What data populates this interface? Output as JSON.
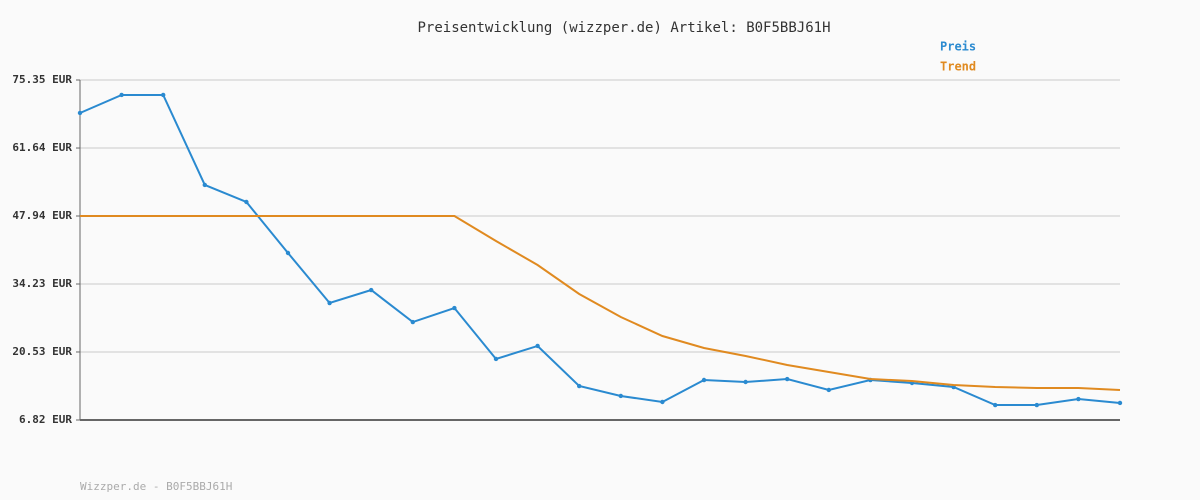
{
  "chart_data": {
    "type": "line",
    "title": "Preisentwicklung (wizzper.de) Artikel: B0F5BBJ61H",
    "categories": [
      null,
      null,
      null,
      null,
      null,
      null,
      null,
      null,
      null,
      null,
      null,
      null,
      null,
      null,
      null,
      null,
      null,
      null,
      null,
      null,
      null,
      null,
      null,
      null,
      null,
      null
    ],
    "series": [
      {
        "name": "Preis",
        "color": "#2a8ad0",
        "values": [
          68.7,
          72.33,
          72.33,
          54.19,
          50.76,
          40.48,
          30.4,
          33.02,
          26.57,
          29.39,
          19.12,
          21.74,
          13.67,
          11.66,
          10.45,
          14.88,
          14.48,
          15.08,
          12.87,
          14.88,
          14.28,
          13.47,
          9.84,
          9.84,
          11.05,
          10.25
        ]
      },
      {
        "name": "Trend",
        "color": "#e08a20",
        "values": [
          47.94,
          47.94,
          47.94,
          47.94,
          47.94,
          47.94,
          47.94,
          47.94,
          47.94,
          47.94,
          42.9,
          38.06,
          32.22,
          27.58,
          23.75,
          21.33,
          19.72,
          17.91,
          16.49,
          15.08,
          14.68,
          13.87,
          13.47,
          13.27,
          13.27,
          12.87
        ]
      }
    ],
    "ylim": [
      6.82,
      75.35
    ],
    "yticks": [
      {
        "value": 6.82,
        "label": "6.82 EUR"
      },
      {
        "value": 20.53,
        "label": "20.53 EUR"
      },
      {
        "value": 34.23,
        "label": "34.23 EUR"
      },
      {
        "value": 47.94,
        "label": "47.94 EUR"
      },
      {
        "value": 61.64,
        "label": "61.64 EUR"
      },
      {
        "value": 75.35,
        "label": "75.35 EUR"
      }
    ],
    "grid": true,
    "legend_position": "top-right"
  },
  "footer": "Wizzper.de - B0F5BBJ61H"
}
